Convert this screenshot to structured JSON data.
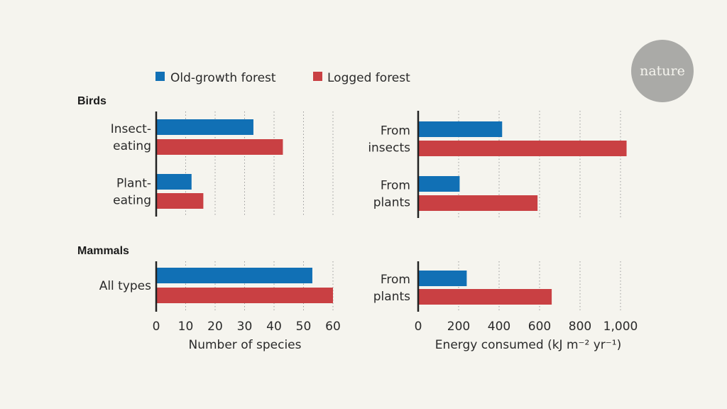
{
  "logo": {
    "text": "nature",
    "color": "#aaaaa7"
  },
  "colors": {
    "old_growth": "#1170b5",
    "logged": "#c94043",
    "background": "#f5f4ee",
    "grid": "#9a9a9a",
    "axis": "#222222"
  },
  "legend": [
    {
      "label": "Old-growth forest",
      "color": "#1170b5"
    },
    {
      "label": "Logged forest",
      "color": "#c94043"
    }
  ],
  "groups": {
    "birds": "Birds",
    "mammals": "Mammals"
  },
  "chart_data": [
    {
      "type": "bar",
      "orientation": "horizontal",
      "panel": "species",
      "xlabel": "Number of species",
      "xlim": [
        0,
        60
      ],
      "xticks": [
        0,
        10,
        20,
        30,
        40,
        50,
        60
      ],
      "xtick_labels": [
        "0",
        "10",
        "20",
        "30",
        "40",
        "50",
        "60"
      ],
      "grid": true,
      "legend": "top-left",
      "groups": [
        {
          "group": "Birds",
          "categories": [
            [
              "Insect-",
              "eating"
            ],
            [
              "Plant-",
              "eating"
            ]
          ],
          "series": [
            {
              "name": "Old-growth forest",
              "values": [
                33,
                12
              ]
            },
            {
              "name": "Logged forest",
              "values": [
                43,
                16
              ]
            }
          ]
        },
        {
          "group": "Mammals",
          "categories": [
            [
              "All types"
            ]
          ],
          "series": [
            {
              "name": "Old-growth forest",
              "values": [
                53
              ]
            },
            {
              "name": "Logged forest",
              "values": [
                60
              ]
            }
          ]
        }
      ]
    },
    {
      "type": "bar",
      "orientation": "horizontal",
      "panel": "energy",
      "xlabel": "Energy consumed (kJ m⁻² yr⁻¹)",
      "xlim": [
        0,
        1000
      ],
      "xticks": [
        0,
        200,
        400,
        600,
        800,
        1000
      ],
      "xtick_labels": [
        "0",
        "200",
        "400",
        "600",
        "800",
        "1,000"
      ],
      "grid": true,
      "groups": [
        {
          "group": "Birds",
          "categories": [
            [
              "From",
              "insects"
            ],
            [
              "From",
              "plants"
            ]
          ],
          "series": [
            {
              "name": "Old-growth forest",
              "values": [
                415,
                205
              ]
            },
            {
              "name": "Logged forest",
              "values": [
                1030,
                590
              ]
            }
          ]
        },
        {
          "group": "Mammals",
          "categories": [
            [
              "From",
              "plants"
            ]
          ],
          "series": [
            {
              "name": "Old-growth forest",
              "values": [
                240
              ]
            },
            {
              "name": "Logged forest",
              "values": [
                660
              ]
            }
          ]
        }
      ]
    }
  ]
}
